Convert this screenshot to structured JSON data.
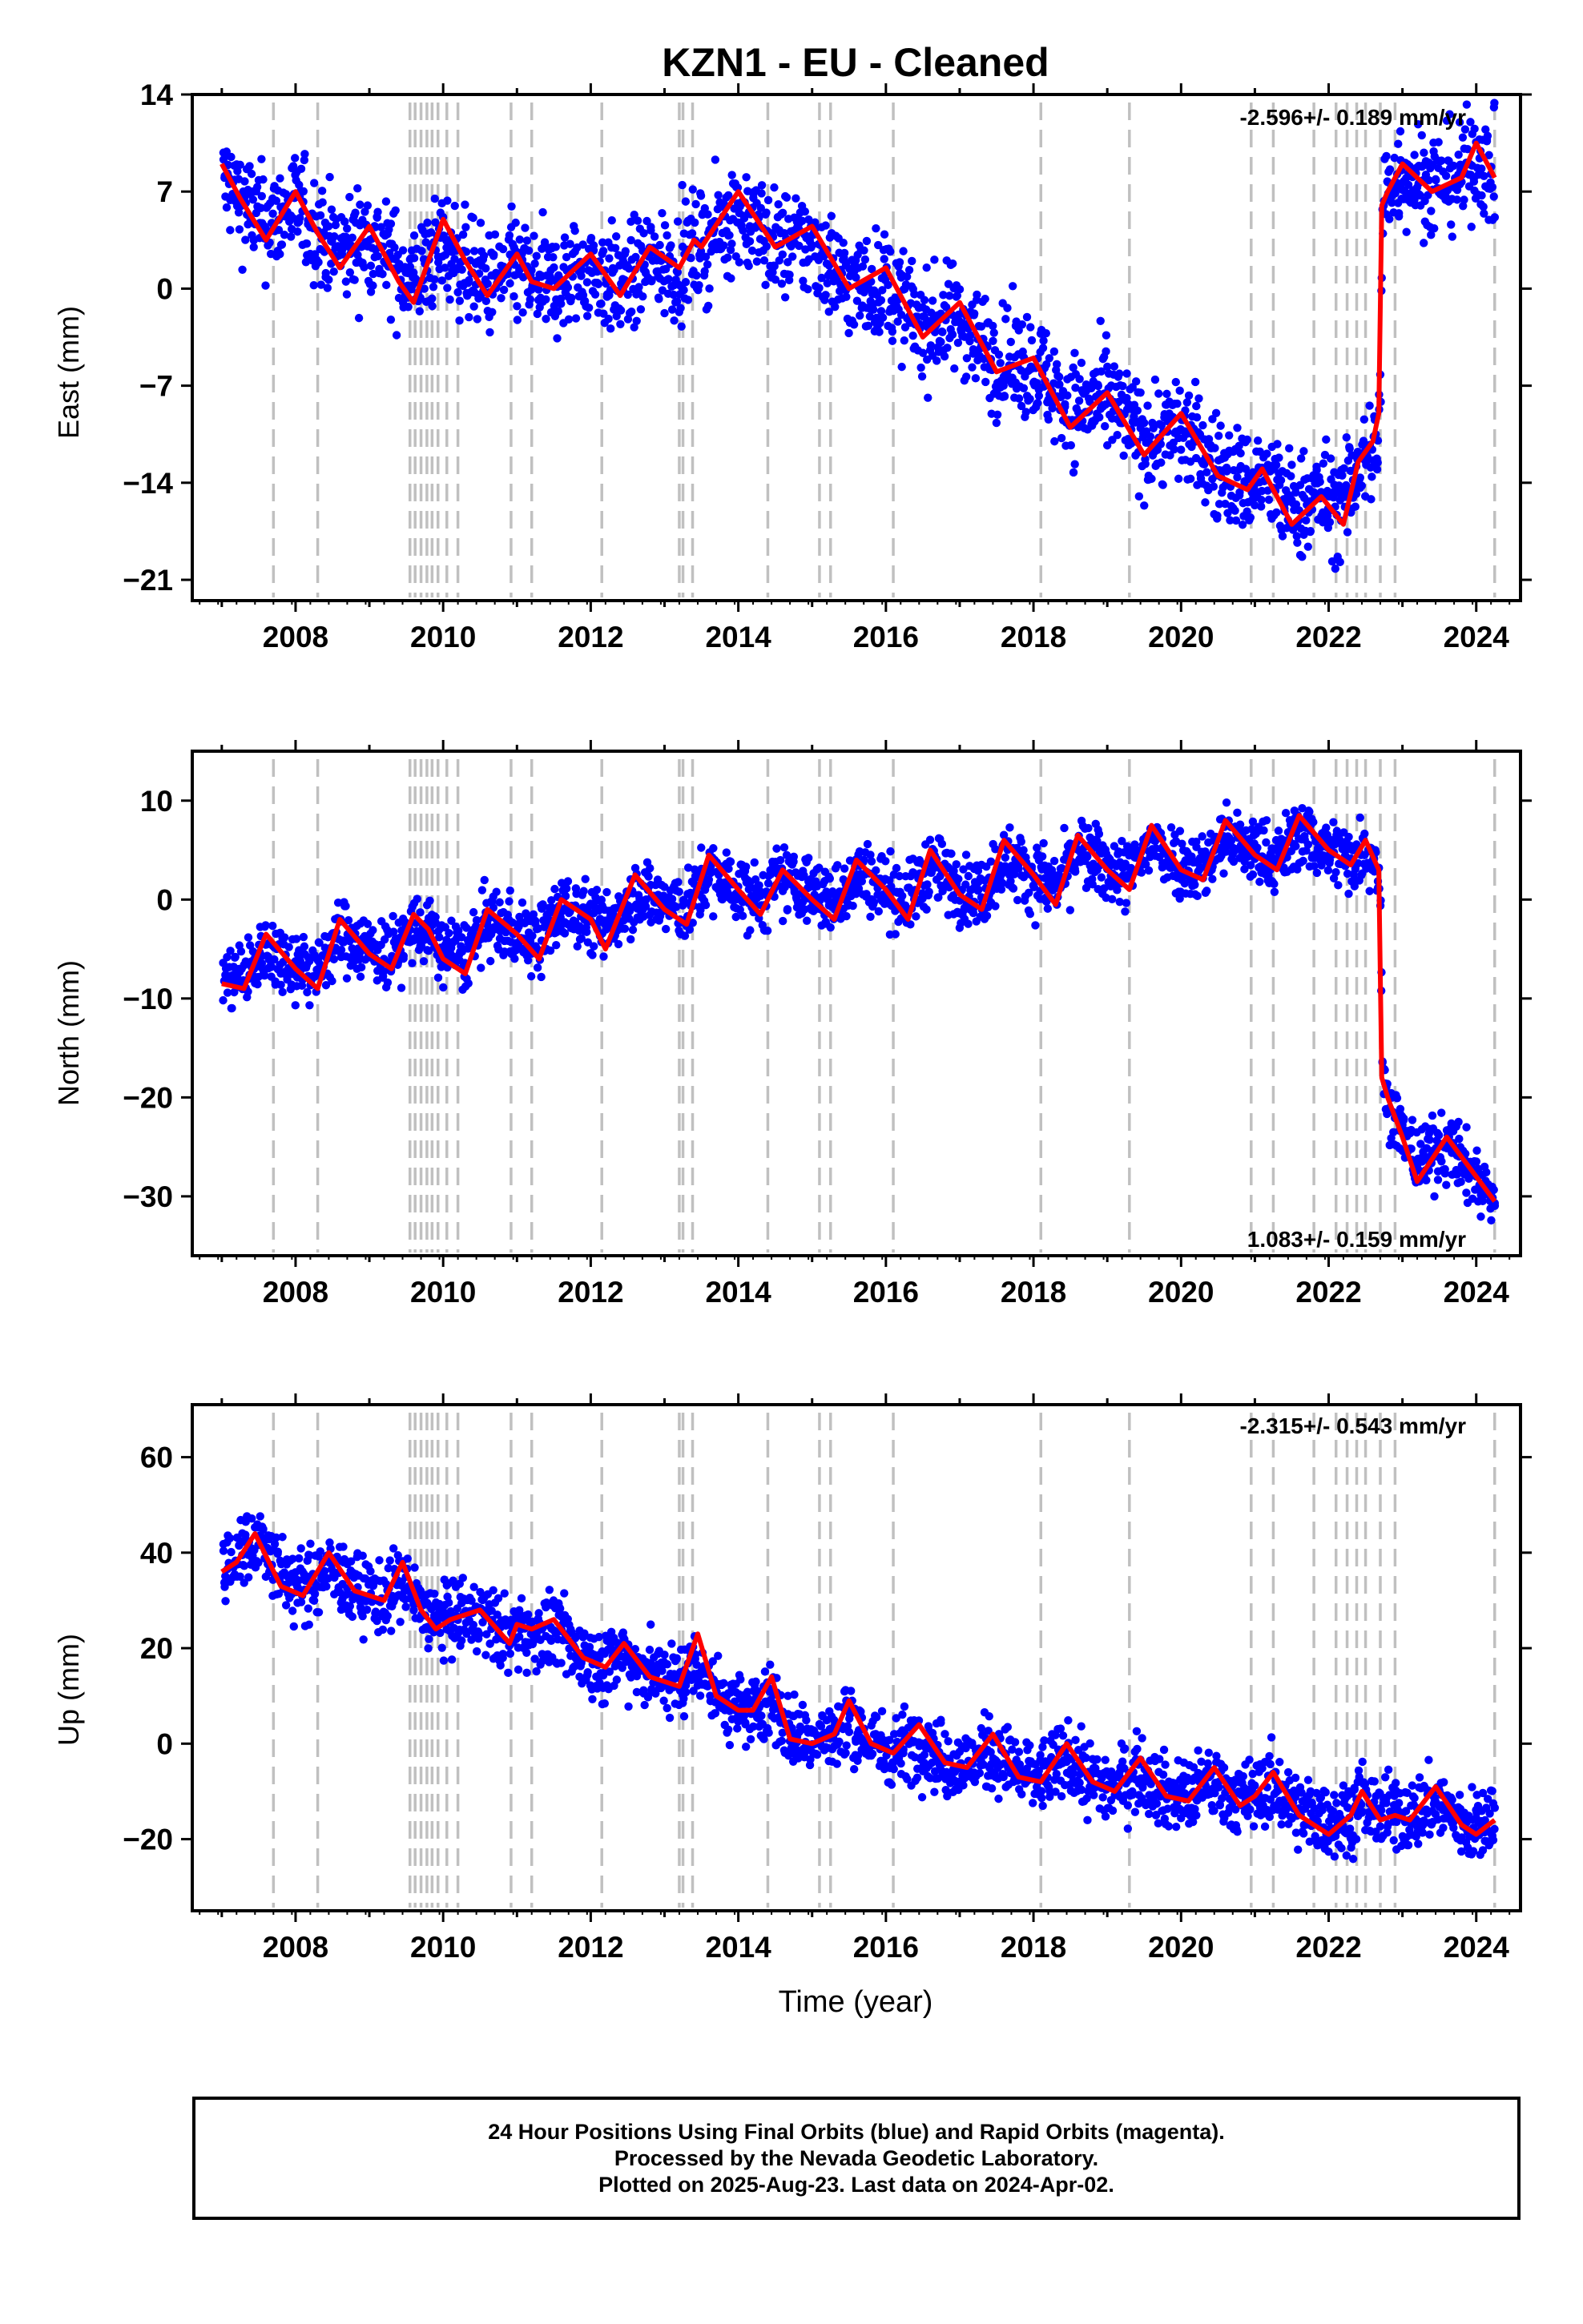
{
  "title": "KZN1  - EU - Cleaned",
  "colors": {
    "points": "#0000ff",
    "fit": "#ff0000",
    "steps": "#c0c0c0",
    "frame": "#000000"
  },
  "xaxis": {
    "label": "Time (year)",
    "ticks": [
      2008,
      2010,
      2012,
      2014,
      2016,
      2018,
      2020,
      2022,
      2024
    ],
    "range": [
      2006.6,
      2024.6
    ]
  },
  "steps": [
    2007.7,
    2008.3,
    2009.55,
    2009.62,
    2009.7,
    2009.78,
    2009.85,
    2009.93,
    2010.05,
    2010.2,
    2010.92,
    2011.2,
    2012.15,
    2013.2,
    2013.25,
    2013.38,
    2014.4,
    2015.1,
    2015.25,
    2016.1,
    2018.1,
    2019.3,
    2020.95,
    2021.25,
    2021.8,
    2022.1,
    2022.25,
    2022.38,
    2022.5,
    2022.7,
    2022.9,
    2024.25
  ],
  "chart_data": [
    {
      "type": "scatter",
      "component": "East",
      "ylabel": "East (mm)",
      "ylim": [
        -22.5,
        14
      ],
      "yticks": [
        "14",
        "7",
        "0",
        "−7",
        "−14",
        "−21"
      ],
      "ytick_values": [
        14,
        7,
        0,
        -7,
        -14,
        -21
      ],
      "rate": "-2.596+/- 0.189 mm/yr",
      "rate_position": "top-right",
      "fit": {
        "x": [
          2007.0,
          2007.25,
          2007.6,
          2008.0,
          2008.3,
          2008.6,
          2009.0,
          2009.4,
          2009.6,
          2009.8,
          2010.0,
          2010.3,
          2010.6,
          2011.0,
          2011.2,
          2011.5,
          2012.0,
          2012.4,
          2012.8,
          2013.2,
          2013.4,
          2013.5,
          2014.0,
          2014.5,
          2015.0,
          2015.5,
          2016.0,
          2016.5,
          2017.0,
          2017.5,
          2018.0,
          2018.5,
          2019.0,
          2019.5,
          2020.0,
          2020.5,
          2020.9,
          2021.1,
          2021.5,
          2021.9,
          2022.2,
          2022.4,
          2022.6,
          2022.68,
          2022.72,
          2022.8,
          2023.0,
          2023.4,
          2023.8,
          2024.0,
          2024.25
        ],
        "y": [
          9,
          6.5,
          3.5,
          7,
          4,
          1.5,
          4.5,
          0.5,
          -1,
          2,
          5,
          2,
          -0.5,
          2.5,
          0.5,
          0,
          2.5,
          -0.5,
          3,
          1.5,
          3.5,
          3,
          7,
          3,
          4.5,
          0,
          1.5,
          -3.5,
          -1,
          -6,
          -5,
          -10,
          -7.5,
          -12,
          -9,
          -13.5,
          -14.5,
          -13,
          -17,
          -15,
          -17,
          -12.5,
          -11,
          -9,
          6,
          7,
          9,
          7,
          8,
          10.5,
          8
        ]
      },
      "points": {
        "base_x": [
          2007.0,
          2008.0,
          2009.0,
          2010.0,
          2011.0,
          2012.0,
          2013.0,
          2014.0,
          2015.0,
          2016.0,
          2017.0,
          2018.0,
          2019.0,
          2020.0,
          2021.0,
          2022.0,
          2022.7,
          2022.75,
          2023.0,
          2024.0,
          2024.25
        ],
        "base_y": [
          7,
          5,
          3,
          1.5,
          0.5,
          0.5,
          1,
          4.5,
          2,
          -1,
          -3,
          -6,
          -8.5,
          -11,
          -14,
          -15,
          -12,
          7.5,
          8,
          8.5,
          8
        ],
        "scatter": 3.5
      }
    },
    {
      "type": "scatter",
      "component": "North",
      "ylabel": "North (mm)",
      "ylim": [
        -36,
        15
      ],
      "yticks": [
        "10",
        "0",
        "−10",
        "−20",
        "−30"
      ],
      "ytick_values": [
        10,
        0,
        -10,
        -20,
        -30
      ],
      "rate": "1.083+/- 0.159 mm/yr",
      "rate_position": "bottom-right",
      "fit": {
        "x": [
          2007.0,
          2007.3,
          2007.6,
          2008.0,
          2008.3,
          2008.6,
          2009.0,
          2009.3,
          2009.6,
          2009.8,
          2010.0,
          2010.3,
          2010.6,
          2011.0,
          2011.3,
          2011.6,
          2012.0,
          2012.2,
          2012.6,
          2013.0,
          2013.3,
          2013.6,
          2014.0,
          2014.3,
          2014.6,
          2015.0,
          2015.3,
          2015.6,
          2016.0,
          2016.3,
          2016.6,
          2017.0,
          2017.3,
          2017.6,
          2018.0,
          2018.3,
          2018.6,
          2019.0,
          2019.3,
          2019.6,
          2020.0,
          2020.3,
          2020.6,
          2021.0,
          2021.3,
          2021.6,
          2022.0,
          2022.3,
          2022.5,
          2022.68,
          2022.72,
          2022.8,
          2023.0,
          2023.2,
          2023.6,
          2024.0,
          2024.25
        ],
        "y": [
          -8.5,
          -9,
          -3.5,
          -7,
          -9,
          -2,
          -5.5,
          -7,
          -1.5,
          -3,
          -6,
          -7.5,
          -1,
          -3.5,
          -6,
          0,
          -2,
          -5,
          2.5,
          -1,
          -2.5,
          4.5,
          1,
          -1.5,
          3,
          0,
          -2,
          4,
          1,
          -2,
          5,
          0.5,
          -1,
          6,
          2.5,
          -0.5,
          6.5,
          3,
          1,
          7.5,
          3,
          2,
          8,
          4.5,
          3,
          8.5,
          5,
          3.5,
          6,
          3,
          -18,
          -20,
          -24,
          -28.5,
          -24,
          -28,
          -30.5
        ]
      },
      "points": {
        "base_x": [
          2007.0,
          2008.0,
          2009.0,
          2010.0,
          2011.0,
          2012.0,
          2013.0,
          2014.0,
          2015.0,
          2016.0,
          2017.0,
          2018.0,
          2019.0,
          2020.0,
          2021.0,
          2022.0,
          2022.7,
          2022.75,
          2023.0,
          2023.5,
          2024.25
        ],
        "base_y": [
          -7,
          -6,
          -4.5,
          -4,
          -3,
          -1.5,
          0,
          1,
          1.5,
          1.5,
          2,
          2.5,
          3.5,
          4.5,
          5,
          5,
          4,
          -19,
          -24,
          -25,
          -30
        ],
        "scatter": 3.2
      }
    },
    {
      "type": "scatter",
      "component": "Up",
      "ylabel": "Up (mm)",
      "ylim": [
        -35,
        71
      ],
      "yticks": [
        "60",
        "40",
        "20",
        "0",
        "−20"
      ],
      "ytick_values": [
        60,
        40,
        20,
        0,
        -20
      ],
      "rate": "-2.315+/- 0.543 mm/yr",
      "rate_position": "top-right",
      "fit": {
        "x": [
          2007.0,
          2007.2,
          2007.45,
          2007.8,
          2008.1,
          2008.45,
          2008.8,
          2009.2,
          2009.45,
          2009.7,
          2009.9,
          2010.1,
          2010.5,
          2010.9,
          2011.0,
          2011.2,
          2011.5,
          2011.9,
          2012.2,
          2012.45,
          2012.8,
          2013.2,
          2013.45,
          2013.7,
          2014.0,
          2014.2,
          2014.45,
          2014.7,
          2015.0,
          2015.3,
          2015.5,
          2015.8,
          2016.1,
          2016.45,
          2016.8,
          2017.1,
          2017.45,
          2017.8,
          2018.1,
          2018.45,
          2018.8,
          2019.1,
          2019.45,
          2019.8,
          2020.1,
          2020.45,
          2020.8,
          2021.0,
          2021.25,
          2021.6,
          2022.0,
          2022.3,
          2022.45,
          2022.7,
          2022.9,
          2023.1,
          2023.45,
          2023.8,
          2024.0,
          2024.25
        ],
        "y": [
          36,
          38,
          44,
          33,
          31,
          40,
          32,
          30,
          38,
          28,
          24,
          26,
          28,
          21,
          25,
          24,
          26,
          18,
          16,
          21,
          14,
          12,
          23,
          10,
          7,
          7,
          14,
          1,
          0,
          2,
          9,
          0,
          -2,
          4,
          -4,
          -5,
          2,
          -7,
          -8,
          0,
          -8,
          -10,
          -3,
          -11,
          -12,
          -5,
          -13,
          -11,
          -6,
          -15,
          -19,
          -15,
          -10,
          -16,
          -15,
          -16,
          -9,
          -17,
          -19,
          -16
        ]
      },
      "points": {
        "base_x": [
          2007.0,
          2007.5,
          2008.0,
          2009.0,
          2010.0,
          2011.0,
          2012.0,
          2013.0,
          2014.0,
          2015.0,
          2016.0,
          2017.0,
          2018.0,
          2019.0,
          2020.0,
          2021.0,
          2022.0,
          2023.0,
          2024.25
        ],
        "base_y": [
          36,
          44,
          34,
          32,
          27,
          23,
          18,
          15,
          8,
          2,
          -1,
          -4,
          -6,
          -8,
          -10,
          -11,
          -14,
          -14,
          -17
        ],
        "scatter": 7
      }
    }
  ],
  "footer": {
    "line1": "24 Hour Positions Using Final Orbits (blue) and Rapid Orbits (magenta).",
    "line2": "Processed by the Nevada Geodetic Laboratory.",
    "line3": "Plotted on 2025-Aug-23. Last data on 2024-Apr-02."
  }
}
